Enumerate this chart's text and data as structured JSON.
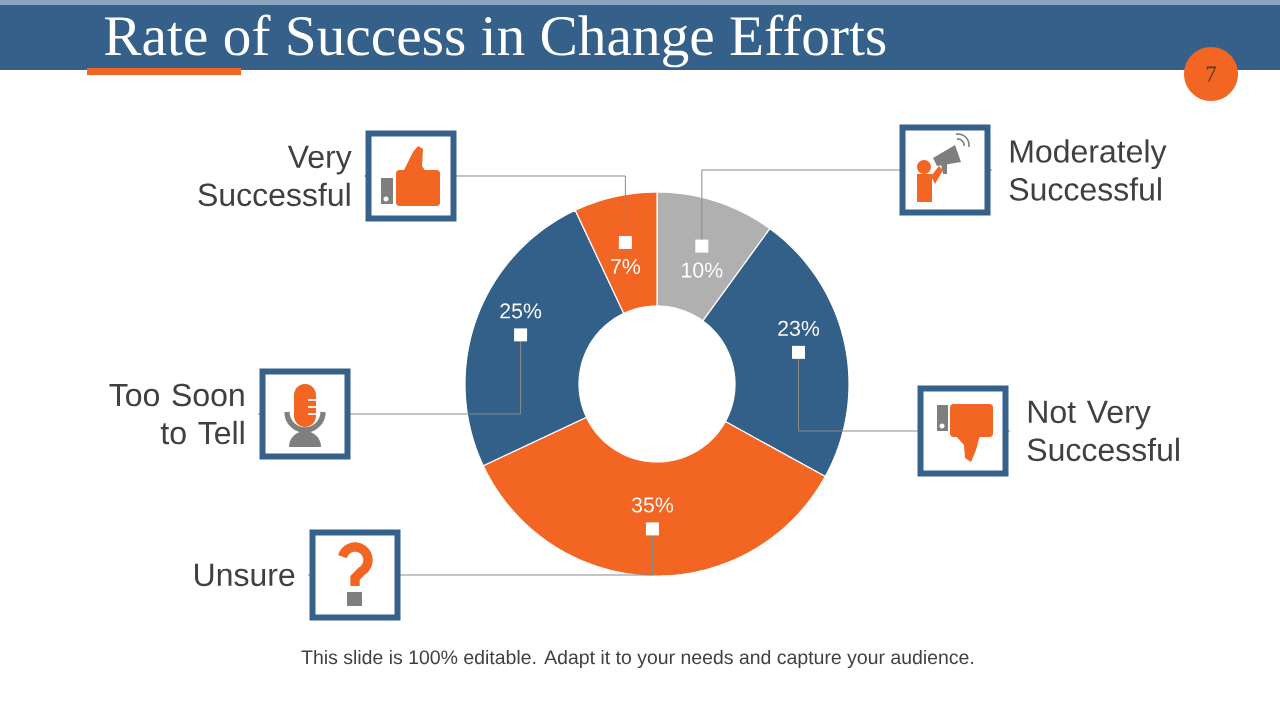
{
  "chart_data": {
    "type": "donut",
    "title": "Rate of Success in Change Efforts",
    "categories": [
      "Moderately Successful",
      "Not Very Successful",
      "Unsure",
      "Too Soon to Tell",
      "Very Successful"
    ],
    "values": [
      10,
      23,
      35,
      25,
      7
    ],
    "colors": [
      "#b0b0b0",
      "#336089",
      "#f26522",
      "#336089",
      "#f26522"
    ],
    "value_labels": [
      "10%",
      "23%",
      "35%",
      "25%",
      "7%"
    ],
    "annotations": [
      "This slide is 100% editable. Adapt it to your needs and capture your audience.",
      "7"
    ]
  }
}
